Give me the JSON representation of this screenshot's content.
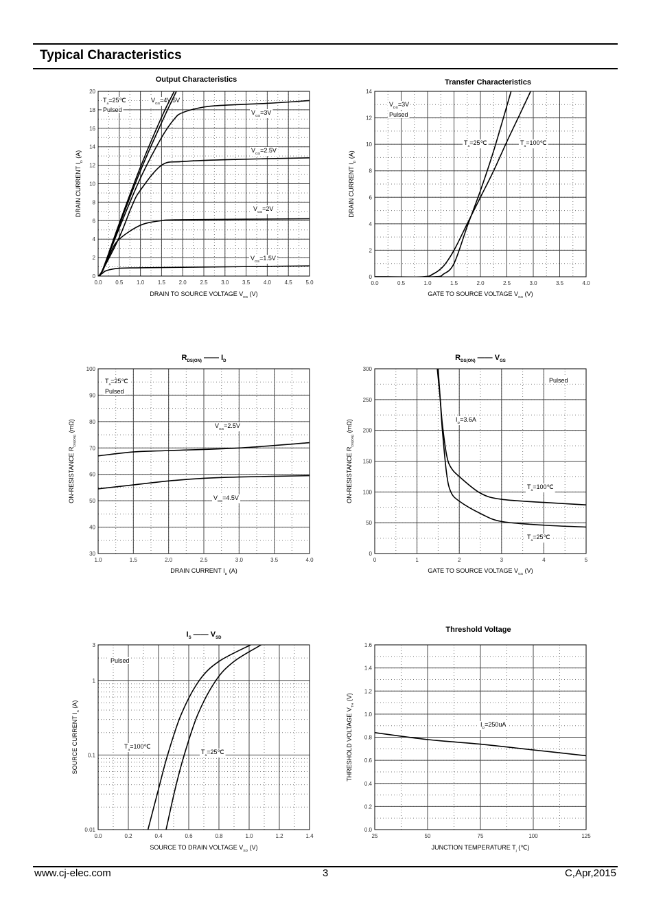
{
  "header": {
    "title": "Typical Characteristics"
  },
  "footer": {
    "website": "www.cj-elec.com",
    "page": "3",
    "revision": "C,Apr,2015"
  },
  "chart_data": [
    {
      "type": "line",
      "title": [
        [
          "Output Characteristics",
          ""
        ]
      ],
      "xlabel": [
        [
          "DRAIN TO SOURCE VOLTAGE    V",
          ""
        ],
        [
          "DS",
          "sub"
        ],
        [
          "    (V)",
          ""
        ]
      ],
      "ylabel": [
        [
          "DRAIN CURRENT    I",
          ""
        ],
        [
          "D",
          "sub"
        ],
        [
          "    (A)",
          ""
        ]
      ],
      "xlim": [
        0,
        5
      ],
      "ylim": [
        0,
        20
      ],
      "log_y": false,
      "xticks": [
        "0.0",
        "0.5",
        "1.0",
        "1.5",
        "2.0",
        "2.5",
        "3.0",
        "3.5",
        "4.0",
        "4.5",
        "5.0"
      ],
      "yticks": [
        "0",
        "2",
        "4",
        "6",
        "8",
        "10",
        "12",
        "14",
        "16",
        "18",
        "20"
      ],
      "series": [
        {
          "name": "VGS=5V",
          "x": [
            0,
            0.1,
            0.5,
            1,
            1.5,
            1.8
          ],
          "y": [
            0,
            0.6,
            5.7,
            11.8,
            17.2,
            20
          ]
        },
        {
          "name": "VGS=4V",
          "x": [
            0,
            0.1,
            0.5,
            1,
            1.5,
            1.85
          ],
          "y": [
            0,
            0.6,
            5.5,
            11.4,
            16.6,
            20
          ]
        },
        {
          "name": "VGS=3V",
          "x": [
            0,
            0.1,
            0.5,
            1,
            1.5,
            1.8,
            2,
            2.5,
            3,
            4,
            5
          ],
          "y": [
            0,
            0.6,
            5.2,
            10.6,
            15,
            17,
            17.7,
            18.3,
            18.5,
            18.7,
            19
          ]
        },
        {
          "name": "VGS=2.5V",
          "x": [
            0,
            0.1,
            0.5,
            0.8,
            1,
            1.5,
            2,
            3,
            5
          ],
          "y": [
            0,
            0.6,
            4.2,
            7.6,
            9.3,
            12,
            12.4,
            12.6,
            12.8
          ]
        },
        {
          "name": "VGS=2V",
          "x": [
            0,
            0.1,
            0.3,
            0.5,
            1,
            1.5,
            2,
            5
          ],
          "y": [
            0,
            0.5,
            2.6,
            4,
            5.5,
            6,
            6.1,
            6.2
          ]
        },
        {
          "name": "VGS=1.5V",
          "x": [
            0,
            0.1,
            0.2,
            0.5,
            1,
            2,
            5
          ],
          "y": [
            0,
            0.3,
            0.6,
            0.85,
            0.9,
            0.95,
            1.1
          ]
        }
      ],
      "annotations": [
        [
          [
            "T",
            ""
          ],
          [
            "a",
            "sub"
          ],
          [
            "=25℃",
            ""
          ]
        ],
        [
          [
            "Pulsed",
            ""
          ]
        ],
        [
          [
            "V",
            ""
          ],
          [
            "GS",
            "sub"
          ],
          [
            "=4V,5V",
            ""
          ]
        ],
        [
          [
            "V",
            ""
          ],
          [
            "GS",
            "sub"
          ],
          [
            "=3V",
            ""
          ]
        ],
        [
          [
            "V",
            ""
          ],
          [
            "GS",
            "sub"
          ],
          [
            "=2.5V",
            ""
          ]
        ],
        [
          [
            "V",
            ""
          ],
          [
            "GS",
            "sub"
          ],
          [
            "=2V",
            ""
          ]
        ],
        [
          [
            "V",
            ""
          ],
          [
            "GS",
            "sub"
          ],
          [
            "=1.5V",
            ""
          ]
        ]
      ]
    },
    {
      "type": "line",
      "title": [
        [
          "Transfer Characteristics",
          ""
        ]
      ],
      "xlabel": [
        [
          "GATE TO SOURCE VOLTAGE    V",
          ""
        ],
        [
          "GS",
          "sub"
        ],
        [
          "    (V)",
          ""
        ]
      ],
      "ylabel": [
        [
          "DRAIN CURRENT    I",
          ""
        ],
        [
          "D",
          "sub"
        ],
        [
          "    (A)",
          ""
        ]
      ],
      "xlim": [
        0,
        4
      ],
      "ylim": [
        0,
        14
      ],
      "log_y": false,
      "xticks": [
        "0.0",
        "0.5",
        "1.0",
        "1.5",
        "2.0",
        "2.5",
        "3.0",
        "3.5",
        "4.0"
      ],
      "yticks": [
        "0",
        "2",
        "4",
        "6",
        "8",
        "10",
        "12",
        "14"
      ],
      "series": [
        {
          "name": "Ta=25℃",
          "x": [
            0,
            1.1,
            1.3,
            1.5,
            1.75,
            2,
            2.25,
            2.58
          ],
          "y": [
            0,
            0,
            0.2,
            1,
            3.8,
            6.5,
            9.5,
            14
          ]
        },
        {
          "name": "Ta=100℃",
          "x": [
            0,
            0.9,
            1.1,
            1.3,
            1.5,
            1.75,
            2,
            2.25,
            2.5,
            2.75,
            2.95
          ],
          "y": [
            0,
            0,
            0.2,
            0.8,
            2,
            4,
            6,
            8,
            10.2,
            12.3,
            14
          ]
        }
      ],
      "annotations": [
        [
          [
            "V",
            ""
          ],
          [
            "DS",
            "sub"
          ],
          [
            "=3V",
            ""
          ]
        ],
        [
          [
            "Pulsed",
            ""
          ]
        ],
        [
          [
            "T",
            ""
          ],
          [
            "a",
            "sub"
          ],
          [
            "=25℃",
            ""
          ]
        ],
        [
          [
            "T",
            ""
          ],
          [
            "a",
            "sub"
          ],
          [
            "=100℃",
            ""
          ]
        ]
      ]
    },
    {
      "type": "line",
      "title": [
        [
          "R",
          ""
        ],
        [
          "DS(ON)",
          "sub"
        ],
        [
          "   ——   I",
          ""
        ],
        [
          "D",
          "sub"
        ]
      ],
      "xlabel": [
        [
          "DRAIN CURRENT    I",
          ""
        ],
        [
          "D",
          "sub"
        ],
        [
          "    (A)",
          ""
        ]
      ],
      "ylabel": [
        [
          "ON-RESISTANCE    R",
          ""
        ],
        [
          "DS(ON)",
          "sub"
        ],
        [
          "    (mΩ)",
          ""
        ]
      ],
      "xlim": [
        1,
        4
      ],
      "ylim": [
        30,
        100
      ],
      "log_y": false,
      "xticks": [
        "1.0",
        "1.5",
        "2.0",
        "2.5",
        "3.0",
        "3.5",
        "4.0"
      ],
      "yticks": [
        "30",
        "40",
        "50",
        "60",
        "70",
        "80",
        "90",
        "100"
      ],
      "series": [
        {
          "name": "VGS=2.5V",
          "x": [
            1,
            1.5,
            2,
            3,
            4
          ],
          "y": [
            67,
            68.5,
            69,
            70,
            72
          ]
        },
        {
          "name": "VGS=4.5V",
          "x": [
            1,
            1.5,
            2,
            2.5,
            3,
            4
          ],
          "y": [
            54.5,
            56,
            57.5,
            58.5,
            59,
            59.5
          ]
        }
      ],
      "annotations": [
        [
          [
            "T",
            ""
          ],
          [
            "a",
            "sub"
          ],
          [
            "=25℃",
            ""
          ]
        ],
        [
          [
            "Pulsed",
            ""
          ]
        ],
        [
          [
            "V",
            ""
          ],
          [
            "GS",
            "sub"
          ],
          [
            "=2.5V",
            ""
          ]
        ],
        [
          [
            "V",
            ""
          ],
          [
            "GS",
            "sub"
          ],
          [
            "=4.5V",
            ""
          ]
        ]
      ]
    },
    {
      "type": "line",
      "title": [
        [
          "R",
          ""
        ],
        [
          "DS(ON)",
          "sub"
        ],
        [
          "   ——   V",
          ""
        ],
        [
          "GS",
          "sub"
        ]
      ],
      "xlabel": [
        [
          "GATE TO SOURCE VOLTAGE    V",
          ""
        ],
        [
          "GS",
          "sub"
        ],
        [
          "    (V)",
          ""
        ]
      ],
      "ylabel": [
        [
          "ON-RESISTANCE    R",
          ""
        ],
        [
          "DS(ON)",
          "sub"
        ],
        [
          "    (mΩ)",
          ""
        ]
      ],
      "xlim": [
        0,
        5
      ],
      "ylim": [
        0,
        300
      ],
      "log_y": false,
      "xticks": [
        "0",
        "1",
        "2",
        "3",
        "4",
        "5"
      ],
      "yticks": [
        "0",
        "50",
        "100",
        "150",
        "200",
        "250",
        "300"
      ],
      "series": [
        {
          "name": "Ta=25℃",
          "x": [
            1.5,
            1.55,
            1.6,
            1.7,
            1.8,
            2,
            2.5,
            3,
            4,
            5
          ],
          "y": [
            300,
            250,
            200,
            130,
            100,
            85,
            65,
            52,
            46,
            43
          ]
        },
        {
          "name": "Ta=100℃",
          "x": [
            1.48,
            1.55,
            1.6,
            1.7,
            1.8,
            2,
            2.5,
            3,
            4,
            5
          ],
          "y": [
            300,
            250,
            210,
            160,
            140,
            125,
            98,
            88,
            83,
            79
          ]
        }
      ],
      "annotations": [
        [
          [
            "Pulsed",
            ""
          ]
        ],
        [
          [
            "I",
            ""
          ],
          [
            "D",
            "sub"
          ],
          [
            "=3.6A",
            ""
          ]
        ],
        [
          [
            "T",
            ""
          ],
          [
            "a",
            "sub"
          ],
          [
            "=100℃",
            ""
          ]
        ],
        [
          [
            "T",
            ""
          ],
          [
            "a",
            "sub"
          ],
          [
            "=25℃",
            ""
          ]
        ]
      ]
    },
    {
      "type": "line",
      "title": [
        [
          "I",
          ""
        ],
        [
          "S",
          "sub"
        ],
        [
          "   ——   V",
          ""
        ],
        [
          "SD",
          "sub"
        ]
      ],
      "xlabel": [
        [
          "SOURCE TO DRAIN VOLTAGE    V",
          ""
        ],
        [
          "SD",
          "sub"
        ],
        [
          "    (V)",
          ""
        ]
      ],
      "ylabel": [
        [
          "SOURCE CURRENT    I",
          ""
        ],
        [
          "S",
          "sub"
        ],
        [
          "    (A)",
          ""
        ]
      ],
      "xlim": [
        0,
        1.4
      ],
      "ylim": [
        0.01,
        3
      ],
      "log_y": true,
      "xticks": [
        "0.0",
        "0.2",
        "0.4",
        "0.6",
        "0.8",
        "1.0",
        "1.2",
        "1.4"
      ],
      "yticks": [
        "0.01",
        "0.1",
        "1",
        "3"
      ],
      "series": [
        {
          "name": "Ta=100℃",
          "x": [
            0.33,
            0.4,
            0.46,
            0.55,
            0.67,
            0.8,
            1.01
          ],
          "y": [
            0.01,
            0.035,
            0.1,
            0.35,
            1,
            1.8,
            3
          ]
        },
        {
          "name": "Ta=25℃",
          "x": [
            0.45,
            0.51,
            0.57,
            0.66,
            0.78,
            0.9,
            1.08
          ],
          "y": [
            0.01,
            0.035,
            0.1,
            0.35,
            1,
            1.8,
            3
          ]
        }
      ],
      "annotations": [
        [
          [
            "Pulsed",
            ""
          ]
        ],
        [
          [
            "T",
            ""
          ],
          [
            "a",
            "sub"
          ],
          [
            "=100℃",
            ""
          ]
        ],
        [
          [
            "T",
            ""
          ],
          [
            "a",
            "sub"
          ],
          [
            "=25℃",
            ""
          ]
        ]
      ]
    },
    {
      "type": "line",
      "title": [
        [
          "Threshold Voltage",
          ""
        ]
      ],
      "xlabel": [
        [
          "JUNCTION TEMPERATURE    T",
          ""
        ],
        [
          "j",
          "sub"
        ],
        [
          "    (℃)",
          ""
        ]
      ],
      "ylabel": [
        [
          "THRESHOLD VOLTAGE    V",
          ""
        ],
        [
          "TH",
          "sub"
        ],
        [
          "    (V)",
          ""
        ]
      ],
      "xlim": [
        25,
        125
      ],
      "ylim": [
        0,
        1.6
      ],
      "log_y": false,
      "xticks": [
        "25",
        "50",
        "75",
        "100",
        "125"
      ],
      "yticks": [
        "0.0",
        "0.2",
        "0.4",
        "0.6",
        "0.8",
        "1.0",
        "1.2",
        "1.4",
        "1.6"
      ],
      "series": [
        {
          "name": "ID=250uA",
          "x": [
            25,
            50,
            75,
            100,
            125
          ],
          "y": [
            0.84,
            0.78,
            0.74,
            0.69,
            0.64
          ]
        }
      ],
      "annotations": [
        [
          [
            "I",
            ""
          ],
          [
            "D",
            "sub"
          ],
          [
            "=250uA",
            ""
          ]
        ]
      ]
    }
  ]
}
